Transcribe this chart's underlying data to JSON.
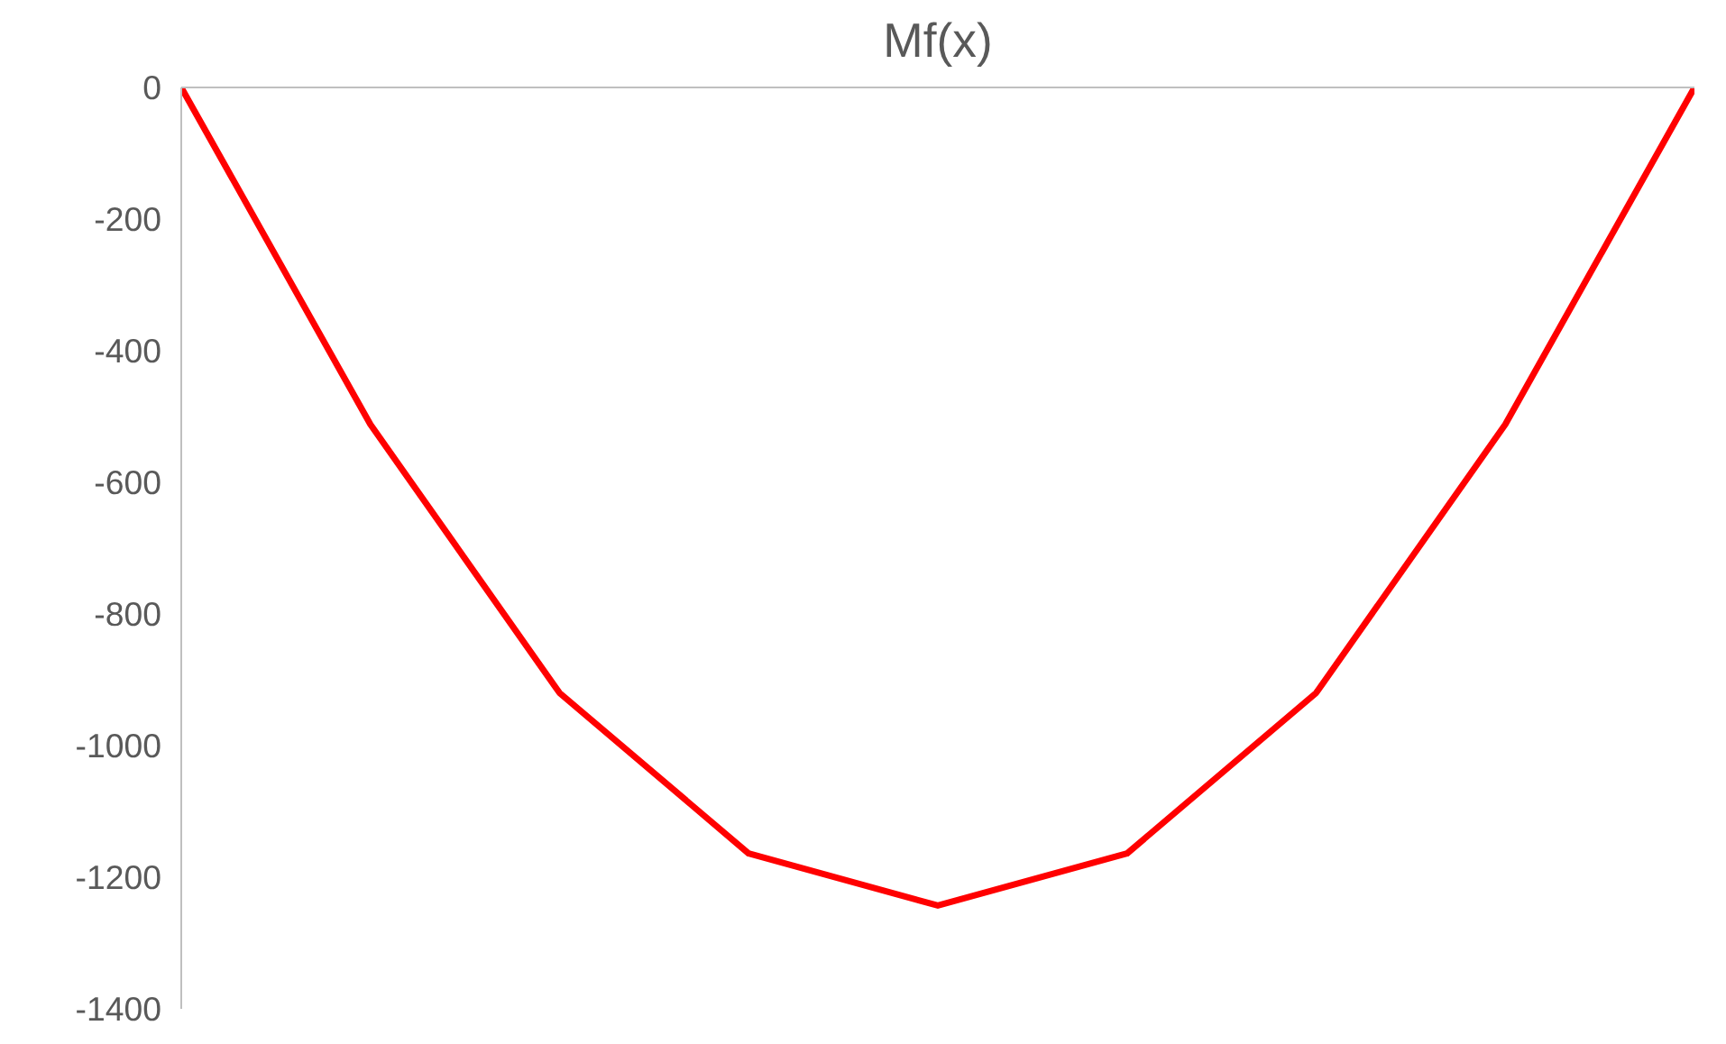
{
  "chart_data": {
    "type": "line",
    "title": "Mf(x)",
    "categories": [
      null,
      null,
      null,
      null,
      null,
      null,
      null,
      null,
      null
    ],
    "series": [
      {
        "color": "#ff0000",
        "values": [
          0,
          -512,
          -920,
          -1164,
          -1243,
          -1164,
          -920,
          -512,
          0
        ]
      }
    ],
    "ylim": [
      -1400,
      0
    ],
    "yticks": [
      0,
      -200,
      -400,
      -600,
      -800,
      -1000,
      -1200,
      -1400
    ],
    "grid": false,
    "marker": "none",
    "line_style": "solid",
    "tick_labels": "y"
  }
}
